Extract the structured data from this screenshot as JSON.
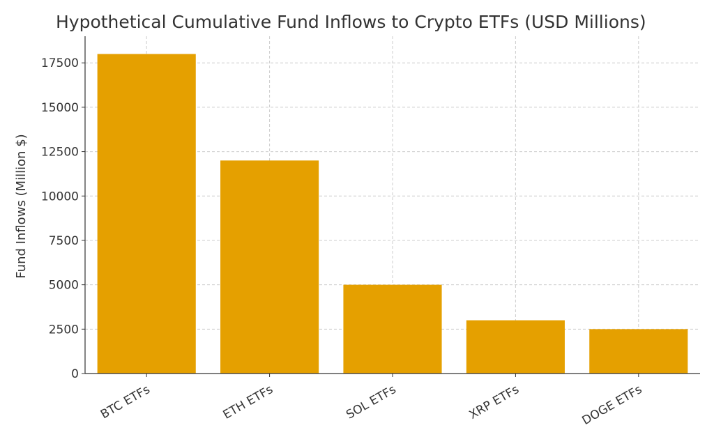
{
  "chart_data": {
    "type": "bar",
    "title": "Hypothetical Cumulative Fund Inflows to Crypto ETFs (USD Millions)",
    "xlabel": "",
    "ylabel": "Fund Inflows (Million $)",
    "categories": [
      "BTC ETFs",
      "ETH ETFs",
      "SOL ETFs",
      "XRP ETFs",
      "DOGE ETFs"
    ],
    "values": [
      18000,
      12000,
      5000,
      3000,
      2500
    ],
    "ylim": [
      0,
      19000
    ],
    "yticks": [
      0,
      2500,
      5000,
      7500,
      10000,
      12500,
      15000,
      17500
    ],
    "bar_color": "#E5A000",
    "grid": true,
    "legend": "none",
    "xtick_rotation": "angled"
  }
}
